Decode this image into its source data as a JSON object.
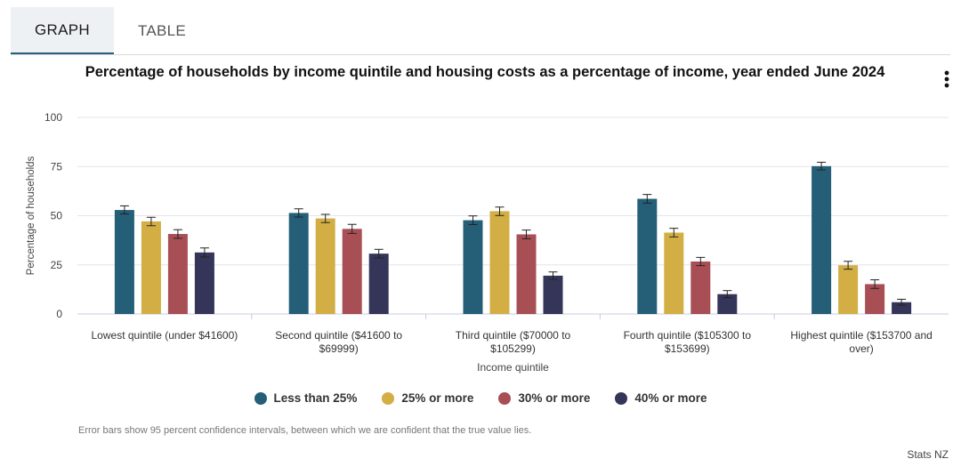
{
  "tabs": [
    {
      "label": "GRAPH"
    },
    {
      "label": "TABLE"
    }
  ],
  "chart_data": {
    "type": "bar",
    "title": "Percentage of households by income quintile and housing costs as a percentage of income, year ended June 2024",
    "xlabel": "Income quintile",
    "ylabel": "Percentage of households",
    "ylim": [
      0,
      100
    ],
    "yticks": [
      0,
      25,
      50,
      75,
      100
    ],
    "grid": true,
    "legend_position": "bottom",
    "categories": [
      [
        "Lowest quintile (under $41600)"
      ],
      [
        "Second quintile ($41600 to",
        "$69999)"
      ],
      [
        "Third quintile ($70000 to",
        "$105299)"
      ],
      [
        "Fourth quintile ($105300 to",
        "$153699)"
      ],
      [
        "Highest quintile ($153700 and",
        "over)"
      ]
    ],
    "series": [
      {
        "name": "Less than 25%",
        "color": "#245f77",
        "values": [
          52.9,
          51.4,
          47.7,
          58.6,
          75.2
        ],
        "error": [
          [
            50.9,
            55.0
          ],
          [
            49.3,
            53.5
          ],
          [
            45.5,
            49.9
          ],
          [
            56.4,
            60.8
          ],
          [
            73.3,
            77.2
          ]
        ]
      },
      {
        "name": "25% or more",
        "color": "#d2ae45",
        "values": [
          47.1,
          48.6,
          52.3,
          41.4,
          24.8
        ],
        "error": [
          [
            44.9,
            49.2
          ],
          [
            46.5,
            50.7
          ],
          [
            50.1,
            54.4
          ],
          [
            39.2,
            43.6
          ],
          [
            22.8,
            26.8
          ]
        ]
      },
      {
        "name": "30% or more",
        "color": "#a84f55",
        "values": [
          40.7,
          43.3,
          40.5,
          26.7,
          15.2
        ],
        "error": [
          [
            38.5,
            42.9
          ],
          [
            41.0,
            45.6
          ],
          [
            38.3,
            42.7
          ],
          [
            24.6,
            28.8
          ],
          [
            13.0,
            17.4
          ]
        ]
      },
      {
        "name": "40% or more",
        "color": "#343558",
        "values": [
          31.3,
          30.7,
          19.5,
          10.1,
          6.0
        ],
        "error": [
          [
            29.0,
            33.6
          ],
          [
            28.5,
            32.9
          ],
          [
            17.6,
            21.4
          ],
          [
            8.3,
            11.9
          ],
          [
            4.5,
            7.5
          ]
        ]
      }
    ]
  },
  "footnote": "Error bars show 95 percent confidence intervals, between which we are confident that the true value lies.",
  "credit": "Stats NZ",
  "menu_icon": "vertical-ellipsis-icon"
}
